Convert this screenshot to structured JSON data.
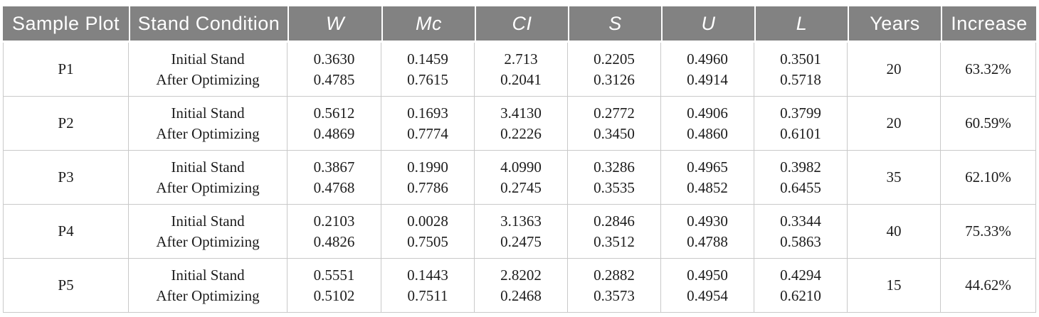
{
  "table": {
    "columns": [
      {
        "label": "Sample Plot",
        "italic": false
      },
      {
        "label": "Stand Condition",
        "italic": false
      },
      {
        "label": "W",
        "italic": true
      },
      {
        "label": "Mc",
        "italic": true
      },
      {
        "label": "CI",
        "italic": true
      },
      {
        "label": "S",
        "italic": true
      },
      {
        "label": "U",
        "italic": true
      },
      {
        "label": "L",
        "italic": true
      },
      {
        "label": "Years",
        "italic": false
      },
      {
        "label": "Increase",
        "italic": false
      }
    ],
    "metric_keys": [
      "W",
      "Mc",
      "CI",
      "S",
      "U",
      "L"
    ],
    "condition_labels": [
      "Initial Stand",
      "After Optimizing"
    ],
    "rows": [
      {
        "plot": "P1",
        "initial": [
          "0.3630",
          "0.1459",
          "2.713",
          "0.2205",
          "0.4960",
          "0.3501"
        ],
        "after": [
          "0.4785",
          "0.7615",
          "0.2041",
          "0.3126",
          "0.4914",
          "0.5718"
        ],
        "years": "20",
        "increase": "63.32%"
      },
      {
        "plot": "P2",
        "initial": [
          "0.5612",
          "0.1693",
          "3.4130",
          "0.2772",
          "0.4906",
          "0.3799"
        ],
        "after": [
          "0.4869",
          "0.7774",
          "0.2226",
          "0.3450",
          "0.4860",
          "0.6101"
        ],
        "years": "20",
        "increase": "60.59%"
      },
      {
        "plot": "P3",
        "initial": [
          "0.3867",
          "0.1990",
          "4.0990",
          "0.3286",
          "0.4965",
          "0.3982"
        ],
        "after": [
          "0.4768",
          "0.7786",
          "0.2745",
          "0.3535",
          "0.4852",
          "0.6455"
        ],
        "years": "35",
        "increase": "62.10%"
      },
      {
        "plot": "P4",
        "initial": [
          "0.2103",
          "0.0028",
          "3.1363",
          "0.2846",
          "0.4930",
          "0.3344"
        ],
        "after": [
          "0.4826",
          "0.7505",
          "0.2475",
          "0.3512",
          "0.4788",
          "0.5863"
        ],
        "years": "40",
        "increase": "75.33%"
      },
      {
        "plot": "P5",
        "initial": [
          "0.5551",
          "0.1443",
          "2.8202",
          "0.2882",
          "0.4950",
          "0.4294"
        ],
        "after": [
          "0.5102",
          "0.7511",
          "0.2468",
          "0.3573",
          "0.4954",
          "0.6210"
        ],
        "years": "15",
        "increase": "44.62%"
      }
    ],
    "colors": {
      "header_bg": "#828282",
      "header_text": "#ffffff",
      "body_border": "#c9c9c9",
      "body_text": "#1c1c1c"
    }
  }
}
